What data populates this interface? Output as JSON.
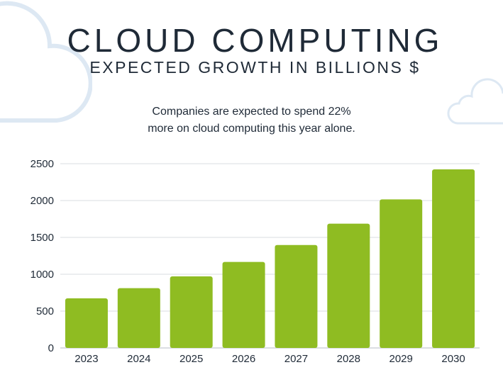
{
  "header": {
    "title": "CLOUD COMPUTING",
    "subtitle": "EXPECTED GROWTH IN BILLIONS $",
    "note_lines": [
      "Companies are expected to spend 22%",
      "more on cloud computing this year alone."
    ]
  },
  "decorations": {
    "icon": "cloud-icon",
    "cloud_color": "#dde8f3"
  },
  "chart_data": {
    "type": "bar",
    "title": "",
    "xlabel": "",
    "ylabel": "",
    "categories": [
      "2023",
      "2024",
      "2025",
      "2026",
      "2027",
      "2028",
      "2029",
      "2030"
    ],
    "values": [
      673,
      811,
      971,
      1167,
      1397,
      1686,
      2016,
      2423
    ],
    "ylim": [
      0,
      2500
    ],
    "yticks": [
      0,
      500,
      1000,
      1500,
      2000,
      2500
    ],
    "grid": true,
    "bar_color": "#8fbc22",
    "grid_color": "#e6e8eb"
  }
}
